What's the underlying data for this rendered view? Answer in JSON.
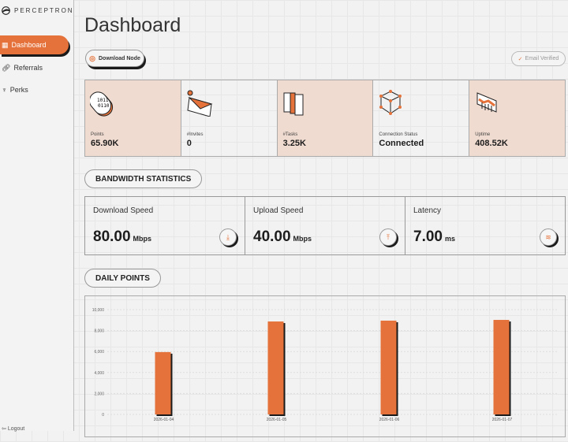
{
  "brand": "PERCEPTRON",
  "sidebar": {
    "items": [
      {
        "label": "Dashboard",
        "active": true
      },
      {
        "label": "Referrals"
      },
      {
        "label": "Perks"
      }
    ],
    "logout": "Logout"
  },
  "header": {
    "title": "Dashboard",
    "download_node": "Download Node",
    "email_verified": "Email Verified"
  },
  "stats": [
    {
      "label": "Points",
      "value": "65.90K"
    },
    {
      "label": "#Invites",
      "value": "0"
    },
    {
      "label": "#Tasks",
      "value": "3.25K"
    },
    {
      "label": "Connection Status",
      "value": "Connected"
    },
    {
      "label": "Uptime",
      "value": "408.52K"
    }
  ],
  "bandwidth": {
    "title": "BANDWIDTH STATISTICS",
    "items": [
      {
        "label": "Download Speed",
        "value": "80.00",
        "unit": "Mbps"
      },
      {
        "label": "Upload Speed",
        "value": "40.00",
        "unit": "Mbps"
      },
      {
        "label": "Latency",
        "value": "7.00",
        "unit": "ms"
      }
    ]
  },
  "daily_points_title": "DAILY POINTS",
  "colors": {
    "accent": "#e5723a",
    "card_tint": "#f0dbd0"
  },
  "chart_data": {
    "type": "bar",
    "categories": [
      "2026-01-04",
      "2026-01-05",
      "2026-01-06",
      "2026-01-07"
    ],
    "values": [
      5950,
      8870,
      8950,
      9020
    ],
    "ylim": [
      0,
      10000
    ],
    "yticks": [
      0,
      2000,
      4000,
      6000,
      8000,
      10000
    ],
    "ytick_labels": [
      "0",
      "2,000",
      "4,000",
      "6,000",
      "8,000",
      "10,000"
    ],
    "grid": true
  }
}
